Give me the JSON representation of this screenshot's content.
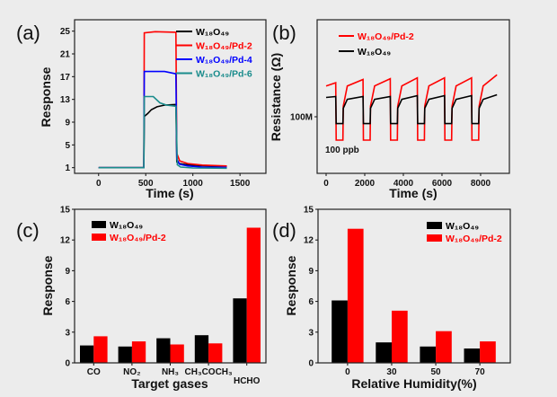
{
  "colors": {
    "background": "#ececec",
    "black": "#000000",
    "red": "#ff0000",
    "blue": "#0000ff",
    "teal": "#1a8c8c"
  },
  "chart_data": [
    {
      "panel": "(a)",
      "type": "line",
      "xlabel": "Time (s)",
      "ylabel": "Response",
      "xlim": [
        -255,
        1775
      ],
      "ylim": [
        0,
        27
      ],
      "xticks": [
        0,
        500,
        1000,
        1500
      ],
      "yticks": [
        1,
        5,
        9,
        13,
        17,
        21,
        25
      ],
      "legend_position": "top-right",
      "series": [
        {
          "name": "W₁₈O₄₉",
          "color": "#000000",
          "points": [
            [
              0,
              1
            ],
            [
              480,
              1
            ],
            [
              485,
              10
            ],
            [
              520,
              10.5
            ],
            [
              560,
              11.2
            ],
            [
              620,
              11.7
            ],
            [
              700,
              12
            ],
            [
              820,
              12.1
            ],
            [
              830,
              2
            ],
            [
              860,
              1.7
            ],
            [
              950,
              1.5
            ],
            [
              1100,
              1.35
            ],
            [
              1360,
              1.25
            ]
          ]
        },
        {
          "name": "W₁₈O₄₉/Pd-2",
          "color": "#ff0000",
          "points": [
            [
              0,
              1
            ],
            [
              480,
              1
            ],
            [
              485,
              24.7
            ],
            [
              600,
              24.9
            ],
            [
              820,
              24.8
            ],
            [
              830,
              3.5
            ],
            [
              860,
              2.2
            ],
            [
              950,
              1.7
            ],
            [
              1100,
              1.45
            ],
            [
              1360,
              1.3
            ]
          ]
        },
        {
          "name": "W₁₈O₄₉/Pd-4",
          "color": "#0000ff",
          "points": [
            [
              0,
              1
            ],
            [
              480,
              1
            ],
            [
              485,
              17.9
            ],
            [
              700,
              17.9
            ],
            [
              820,
              17.5
            ],
            [
              830,
              2.5
            ],
            [
              860,
              1.6
            ],
            [
              950,
              1.3
            ],
            [
              1100,
              1.1
            ],
            [
              1360,
              1.05
            ]
          ]
        },
        {
          "name": "W₁₈O₄₉/Pd-6",
          "color": "#1a8c8c",
          "points": [
            [
              0,
              1
            ],
            [
              480,
              1
            ],
            [
              485,
              13.5
            ],
            [
              580,
              13.5
            ],
            [
              650,
              12.4
            ],
            [
              720,
              12
            ],
            [
              820,
              11.8
            ],
            [
              835,
              1.5
            ],
            [
              870,
              1.1
            ],
            [
              1000,
              0.95
            ],
            [
              1360,
              0.9
            ]
          ]
        }
      ]
    },
    {
      "panel": "(b)",
      "type": "line",
      "xlabel": "Time (s)",
      "ylabel": "Resistance (Ω)",
      "xlim": [
        -465,
        9490
      ],
      "ylim": [
        60000000.0,
        240000000.0
      ],
      "yscale": "log",
      "xticks": [
        0,
        2000,
        4000,
        6000,
        8000
      ],
      "yticks": [
        {
          "value": 100000000.0,
          "label": "100M"
        }
      ],
      "annotation": "100 ppb",
      "legend_position": "top-left",
      "series": [
        {
          "name": "W₁₈O₄₉/Pd-2",
          "color": "#ff0000",
          "points": [
            [
              0,
              132000000.0
            ],
            [
              500,
              136000000.0
            ],
            [
              520,
              81000000.0
            ],
            [
              870,
              81000000.0
            ],
            [
              890,
              110000000.0
            ],
            [
              1100,
              132000000.0
            ],
            [
              1910,
              140000000.0
            ],
            [
              1930,
              81000000.0
            ],
            [
              2280,
              81000000.0
            ],
            [
              2300,
              110000000.0
            ],
            [
              2510,
              132000000.0
            ],
            [
              3320,
              141000000.0
            ],
            [
              3340,
              81000000.0
            ],
            [
              3690,
              81000000.0
            ],
            [
              3710,
              110000000.0
            ],
            [
              3920,
              132000000.0
            ],
            [
              4720,
              142000000.0
            ],
            [
              4740,
              81000000.0
            ],
            [
              5090,
              81000000.0
            ],
            [
              5110,
              110000000.0
            ],
            [
              5320,
              132000000.0
            ],
            [
              6130,
              142000000.0
            ],
            [
              6150,
              81000000.0
            ],
            [
              6500,
              81000000.0
            ],
            [
              6520,
              110000000.0
            ],
            [
              6730,
              132000000.0
            ],
            [
              7530,
              142000000.0
            ],
            [
              7550,
              81000000.0
            ],
            [
              7900,
              81000000.0
            ],
            [
              7920,
              110000000.0
            ],
            [
              8130,
              132000000.0
            ],
            [
              8850,
              146000000.0
            ]
          ]
        },
        {
          "name": "W₁₈O₄₉",
          "color": "#000000",
          "points": [
            [
              0,
              119000000.0
            ],
            [
              500,
              120000000.0
            ],
            [
              520,
              94000000.0
            ],
            [
              870,
              94000000.0
            ],
            [
              890,
              108000000.0
            ],
            [
              1100,
              117000000.0
            ],
            [
              1910,
              120000000.0
            ],
            [
              1930,
              94000000.0
            ],
            [
              2280,
              94000000.0
            ],
            [
              2300,
              108000000.0
            ],
            [
              2510,
              117000000.0
            ],
            [
              3320,
              120000000.0
            ],
            [
              3340,
              94000000.0
            ],
            [
              3690,
              94000000.0
            ],
            [
              3710,
              108000000.0
            ],
            [
              3920,
              117000000.0
            ],
            [
              4720,
              121000000.0
            ],
            [
              4740,
              94000000.0
            ],
            [
              5090,
              94000000.0
            ],
            [
              5110,
              108000000.0
            ],
            [
              5320,
              117000000.0
            ],
            [
              6130,
              121000000.0
            ],
            [
              6150,
              94000000.0
            ],
            [
              6500,
              94000000.0
            ],
            [
              6520,
              108000000.0
            ],
            [
              6730,
              117000000.0
            ],
            [
              7530,
              121000000.0
            ],
            [
              7550,
              94000000.0
            ],
            [
              7900,
              94000000.0
            ],
            [
              7920,
              108000000.0
            ],
            [
              8130,
              117000000.0
            ],
            [
              8850,
              122000000.0
            ]
          ]
        }
      ]
    },
    {
      "panel": "(c)",
      "type": "bar",
      "xlabel": "Target gases",
      "ylabel": "Response",
      "ylim": [
        0,
        15
      ],
      "yticks": [
        0,
        3,
        6,
        9,
        12,
        15
      ],
      "categories": [
        "CO",
        "NO₂",
        "NH₃",
        "CH₃COCH₃",
        "HCHO"
      ],
      "legend_position": "top-left",
      "series": [
        {
          "name": "W₁₈O₄₉",
          "color": "#000000",
          "values": [
            1.7,
            1.6,
            2.4,
            2.7,
            6.3
          ]
        },
        {
          "name": "W₁₈O₄₉/Pd-2",
          "color": "#ff0000",
          "values": [
            2.6,
            2.1,
            1.8,
            1.9,
            13.2
          ]
        }
      ]
    },
    {
      "panel": "(d)",
      "type": "bar",
      "xlabel": "Relative Humidity(%)",
      "ylabel": "Response",
      "ylim": [
        0,
        15
      ],
      "yticks": [
        0,
        3,
        6,
        9,
        12,
        15
      ],
      "categories": [
        "0",
        "30",
        "50",
        "70"
      ],
      "legend_position": "top-right",
      "series": [
        {
          "name": "W₁₈O₄₉",
          "color": "#000000",
          "values": [
            6.1,
            2.0,
            1.6,
            1.4
          ]
        },
        {
          "name": "W₁₈O₄₉/Pd-2",
          "color": "#ff0000",
          "values": [
            13.1,
            5.1,
            3.1,
            2.1
          ]
        }
      ]
    }
  ]
}
